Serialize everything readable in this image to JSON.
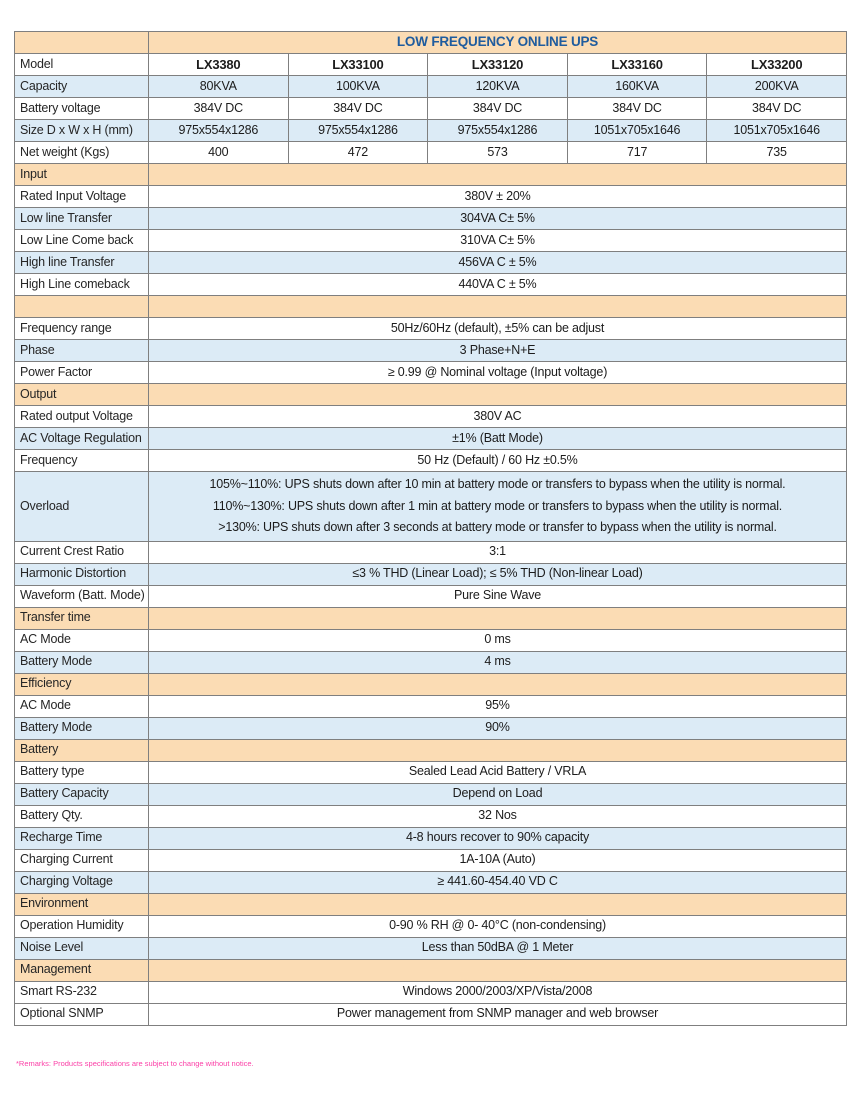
{
  "title": "LOW FREQUENCY ONLINE UPS",
  "footer": {
    "remarks": "*Remarks: Products specifications are subject to change without notice."
  },
  "colors": {
    "section_bg": "#fbdcb4",
    "alt_row_bg": "#dcebf6",
    "title_color": "#1f5c9e",
    "note_color": "#fb3ea6",
    "border_color": "#7f7f7f"
  },
  "spec_table": {
    "corner_label": "",
    "rows": [
      {
        "kind": "multi",
        "label": "Model",
        "bold": true,
        "bg": "white",
        "values": [
          "LX3380",
          "LX33100",
          "LX33120",
          "LX33160",
          "LX33200"
        ]
      },
      {
        "kind": "multi",
        "label": "Capacity",
        "bg": "blue",
        "values": [
          "80KVA",
          "100KVA",
          "120KVA",
          "160KVA",
          "200KVA"
        ]
      },
      {
        "kind": "multi",
        "label": "Battery voltage",
        "bg": "white",
        "values": [
          "384V DC",
          "384V DC",
          "384V DC",
          "384V DC",
          "384V DC"
        ]
      },
      {
        "kind": "multi",
        "label": "Size D x W x H (mm)",
        "bg": "blue",
        "values": [
          "975x554x1286",
          "975x554x1286",
          "975x554x1286",
          "1051x705x1646",
          "1051x705x1646"
        ]
      },
      {
        "kind": "multi",
        "label": "Net weight (Kgs)",
        "bg": "white",
        "values": [
          "400",
          "472",
          "573",
          "717",
          "735"
        ]
      },
      {
        "kind": "section",
        "label": "Input"
      },
      {
        "kind": "single",
        "label": "Rated Input Voltage",
        "bg": "white",
        "value": "380V ± 20%"
      },
      {
        "kind": "single",
        "label": "Low line Transfer",
        "bg": "blue",
        "value": "304VA C± 5%"
      },
      {
        "kind": "single",
        "label": "Low Line Come back",
        "bg": "white",
        "value": "310VA C± 5%"
      },
      {
        "kind": "single",
        "label": "High line Transfer",
        "bg": "blue",
        "value": "456VA C ± 5%"
      },
      {
        "kind": "single",
        "label": "High Line comeback",
        "bg": "white",
        "value": "440VA C ± 5%"
      },
      {
        "kind": "section",
        "label": ""
      },
      {
        "kind": "single",
        "label": "Frequency range",
        "bg": "white",
        "value": "50Hz/60Hz (default), ±5% can be adjust"
      },
      {
        "kind": "single",
        "label": "Phase",
        "bg": "blue",
        "value": "3 Phase+N+E"
      },
      {
        "kind": "single",
        "label": "Power Factor",
        "bg": "white",
        "value": "≥ 0.99 @ Nominal voltage (Input voltage)"
      },
      {
        "kind": "section",
        "label": "Output"
      },
      {
        "kind": "single",
        "label": "Rated output Voltage",
        "bg": "white",
        "value": "380V AC"
      },
      {
        "kind": "single",
        "label": "AC Voltage Regulation",
        "bg": "blue",
        "value": "±1% (Batt Mode)"
      },
      {
        "kind": "single",
        "label": "Frequency",
        "bg": "white",
        "value": "50 Hz (Default) / 60 Hz ±0.5%"
      },
      {
        "kind": "single",
        "label": "Overload",
        "bg": "blue",
        "lines": [
          "105%~110%: UPS shuts down after 10 min at battery mode or transfers to bypass when the utility is normal.",
          "110%~130%: UPS shuts down after 1 min at battery mode or transfers to bypass when the utility is normal.",
          ">130%: UPS shuts down after 3 seconds at battery mode or transfer to bypass when the utility is normal."
        ]
      },
      {
        "kind": "single",
        "label": "Current Crest Ratio",
        "bg": "white",
        "value": "3:1"
      },
      {
        "kind": "single",
        "label": "Harmonic Distortion",
        "bg": "blue",
        "value": "≤3 % THD (Linear Load); ≤ 5% THD (Non-linear Load)"
      },
      {
        "kind": "single",
        "label": "Waveform (Batt. Mode)",
        "bg": "white",
        "value": "Pure Sine Wave"
      },
      {
        "kind": "section",
        "label": "Transfer time"
      },
      {
        "kind": "single",
        "label": "AC Mode",
        "bg": "white",
        "value": "0 ms"
      },
      {
        "kind": "single",
        "label": "Battery Mode",
        "bg": "blue",
        "value": "4 ms"
      },
      {
        "kind": "section",
        "label": "Efficiency"
      },
      {
        "kind": "single",
        "label": "AC Mode",
        "bg": "white",
        "value": "95%"
      },
      {
        "kind": "single",
        "label": "Battery Mode",
        "bg": "blue",
        "value": "90%"
      },
      {
        "kind": "section",
        "label": "Battery"
      },
      {
        "kind": "single",
        "label": "Battery type",
        "bg": "white",
        "value": "Sealed Lead Acid Battery / VRLA"
      },
      {
        "kind": "single",
        "label": "Battery Capacity",
        "bg": "blue",
        "value": "Depend on Load"
      },
      {
        "kind": "single",
        "label": "Battery Qty.",
        "bg": "white",
        "value": "32 Nos"
      },
      {
        "kind": "single",
        "label": "Recharge Time",
        "bg": "blue",
        "value": "4-8 hours recover to 90% capacity"
      },
      {
        "kind": "single",
        "label": "Charging Current",
        "bg": "white",
        "value": "1A-10A (Auto)"
      },
      {
        "kind": "single",
        "label": "Charging Voltage",
        "bg": "blue",
        "value": "≥ 441.60-454.40 VD C"
      },
      {
        "kind": "section",
        "label": "Environment"
      },
      {
        "kind": "single",
        "label": "Operation Humidity",
        "bg": "white",
        "value": "0-90 % RH @ 0- 40°C (non-condensing)"
      },
      {
        "kind": "single",
        "label": "Noise Level",
        "bg": "blue",
        "value": "Less than 50dBA @ 1 Meter"
      },
      {
        "kind": "section",
        "label": "Management"
      },
      {
        "kind": "single",
        "label": "Smart RS-232",
        "bg": "white",
        "value": "Windows 2000/2003/XP/Vista/2008"
      },
      {
        "kind": "single",
        "label": "Optional SNMP",
        "bg": "white",
        "value": "Power management from SNMP manager and web browser"
      }
    ]
  }
}
